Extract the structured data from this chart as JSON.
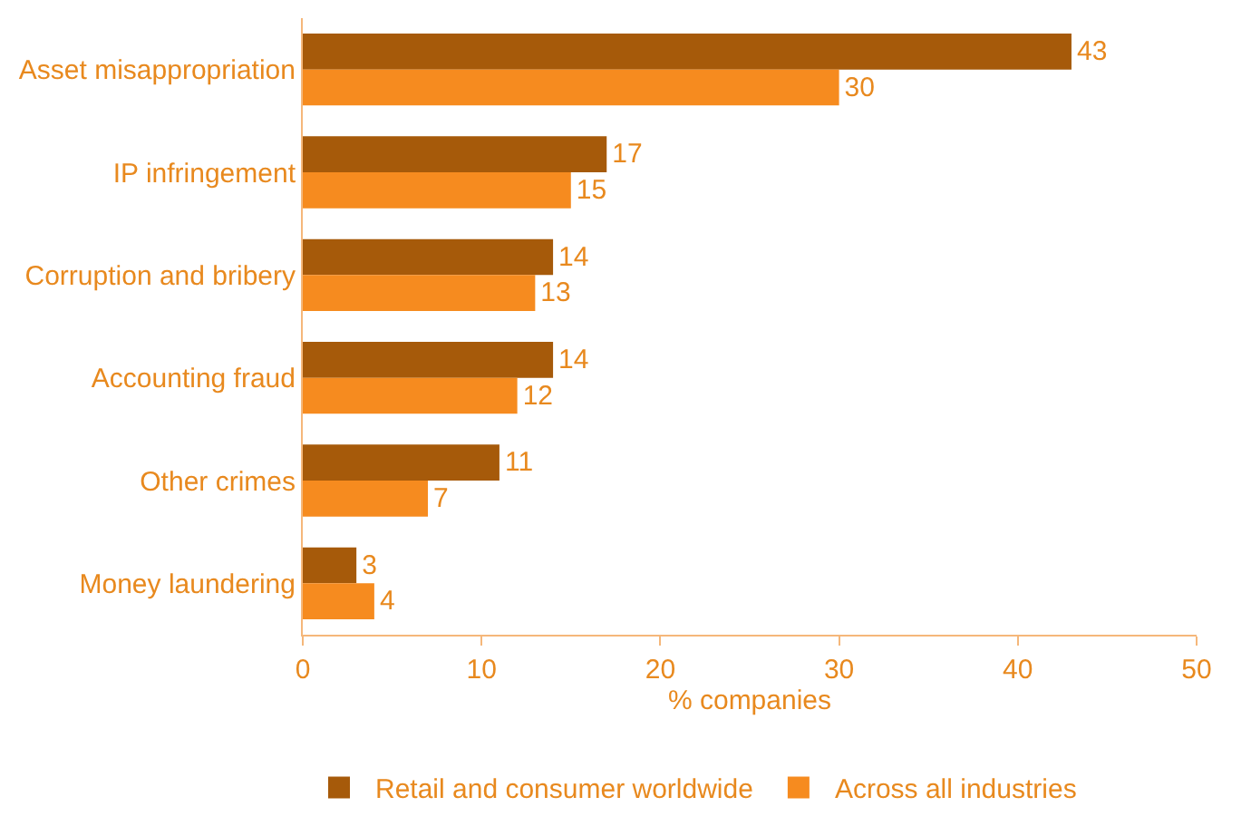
{
  "chart_data": {
    "type": "bar",
    "orientation": "horizontal",
    "categories": [
      "Asset misappropriation",
      "IP infringement",
      "Corruption and bribery",
      "Accounting fraud",
      "Other crimes",
      "Money laundering"
    ],
    "series": [
      {
        "name": "Retail and consumer worldwide",
        "color": "#a65a0a",
        "values": [
          43,
          17,
          14,
          14,
          11,
          3
        ]
      },
      {
        "name": "Across all industries",
        "color": "#f68b1f",
        "values": [
          30,
          15,
          13,
          12,
          7,
          4
        ]
      }
    ],
    "xlabel": "% companies",
    "xlim": [
      0,
      50
    ],
    "xticks": [
      0,
      10,
      20,
      30,
      40,
      50
    ],
    "data_labels": true,
    "legend": "bottom"
  }
}
